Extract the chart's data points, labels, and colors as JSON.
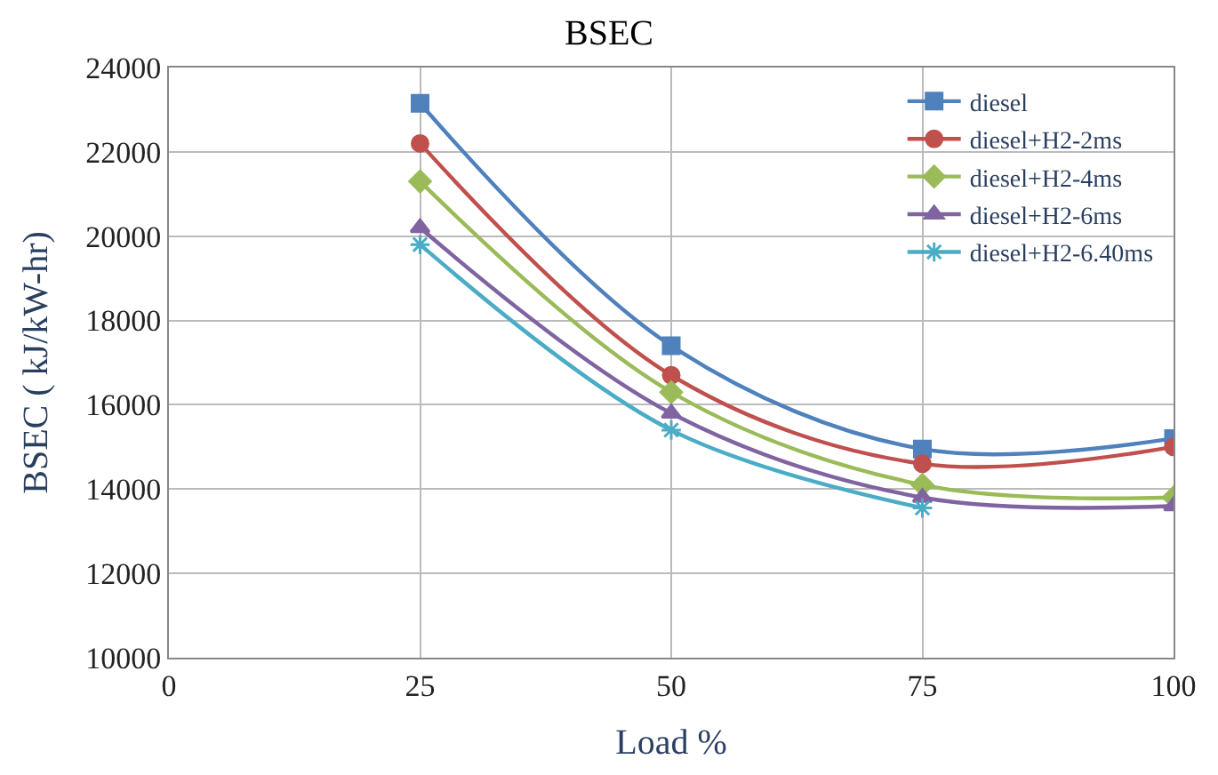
{
  "chart_data": {
    "type": "line",
    "title": "BSEC",
    "xlabel": "Load %",
    "ylabel": "BSEC ( kJ/kW-hr)",
    "x": [
      25,
      50,
      75,
      100
    ],
    "series": [
      {
        "name": "diesel",
        "color": "#4f81bd",
        "marker": "square",
        "values": [
          23150,
          17400,
          14950,
          15200
        ]
      },
      {
        "name": "diesel+H2-2ms",
        "color": "#c0504d",
        "marker": "circle",
        "values": [
          22200,
          16700,
          14600,
          15000
        ]
      },
      {
        "name": "diesel+H2-4ms",
        "color": "#9bbb59",
        "marker": "diamond",
        "values": [
          21300,
          16300,
          14100,
          13800
        ]
      },
      {
        "name": "diesel+H2-6ms",
        "color": "#8064a2",
        "marker": "triangle",
        "values": [
          20200,
          15800,
          13800,
          13600
        ]
      },
      {
        "name": "diesel+H2-6.40ms",
        "color": "#4bacc6",
        "marker": "cross",
        "values": [
          19800,
          15400,
          13550,
          null
        ]
      }
    ],
    "xlim": [
      0,
      100
    ],
    "xticks": [
      0,
      25,
      50,
      75,
      100
    ],
    "ylim": [
      10000,
      24000
    ],
    "yticks": [
      10000,
      12000,
      14000,
      16000,
      18000,
      20000,
      22000,
      24000
    ],
    "grid": true,
    "legend": "top right",
    "line_style": "solid"
  }
}
